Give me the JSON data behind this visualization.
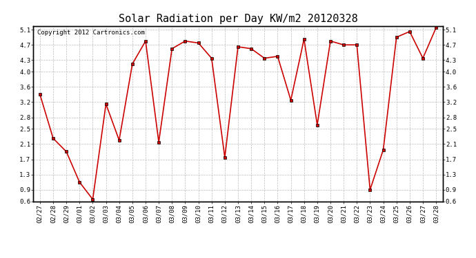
{
  "title": "Solar Radiation per Day KW/m2 20120328",
  "copyright_text": "Copyright 2012 Cartronics.com",
  "dates": [
    "02/27",
    "02/28",
    "02/29",
    "03/01",
    "03/02",
    "03/03",
    "03/04",
    "03/05",
    "03/06",
    "03/07",
    "03/08",
    "03/09",
    "03/10",
    "03/11",
    "03/12",
    "03/13",
    "03/14",
    "03/15",
    "03/16",
    "03/17",
    "03/18",
    "03/19",
    "03/20",
    "03/21",
    "03/22",
    "03/23",
    "03/24",
    "03/25",
    "03/26",
    "03/27",
    "03/28"
  ],
  "values": [
    3.4,
    2.25,
    1.9,
    1.1,
    0.65,
    3.15,
    2.2,
    4.2,
    4.8,
    2.15,
    4.6,
    4.8,
    4.75,
    4.35,
    1.75,
    4.65,
    4.6,
    4.35,
    4.4,
    3.25,
    4.85,
    2.6,
    4.8,
    4.7,
    4.7,
    0.9,
    1.95,
    4.9,
    5.05,
    4.35,
    5.15
  ],
  "line_color": "#cc0000",
  "marker": "s",
  "marker_color": "#cc0000",
  "marker_size": 2.5,
  "bg_color": "#ffffff",
  "grid_color": "#bbbbbb",
  "ylim": [
    0.6,
    5.2
  ],
  "yticks": [
    0.6,
    0.9,
    1.3,
    1.7,
    2.1,
    2.5,
    2.8,
    3.2,
    3.6,
    4.0,
    4.3,
    4.7,
    5.1
  ],
  "title_fontsize": 11,
  "tick_fontsize": 6.5,
  "copyright_fontsize": 6.5
}
